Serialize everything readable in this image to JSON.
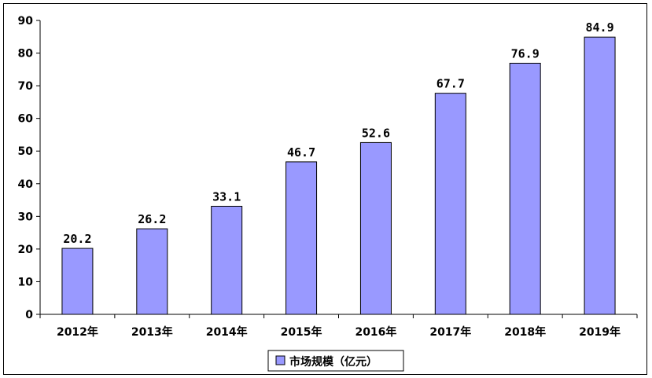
{
  "chart_data": {
    "type": "bar",
    "categories": [
      "2012年",
      "2013年",
      "2014年",
      "2015年",
      "2016年",
      "2017年",
      "2018年",
      "2019年"
    ],
    "series": [
      {
        "name": "市场规模（亿元）",
        "values": [
          20.2,
          26.2,
          33.1,
          46.7,
          52.6,
          67.7,
          76.9,
          84.9
        ],
        "color": "#9999ff"
      }
    ],
    "data_labels": [
      "20.2",
      "26.2",
      "33.1",
      "46.7",
      "52.6",
      "67.7",
      "76.9",
      "84.9"
    ],
    "y_ticks": [
      "0",
      "10",
      "20",
      "30",
      "40",
      "50",
      "60",
      "70",
      "80",
      "90"
    ],
    "ylim": [
      0,
      90
    ],
    "grid": false,
    "legend_position": "bottom-center",
    "legend_label": "市场规模（亿元）"
  }
}
